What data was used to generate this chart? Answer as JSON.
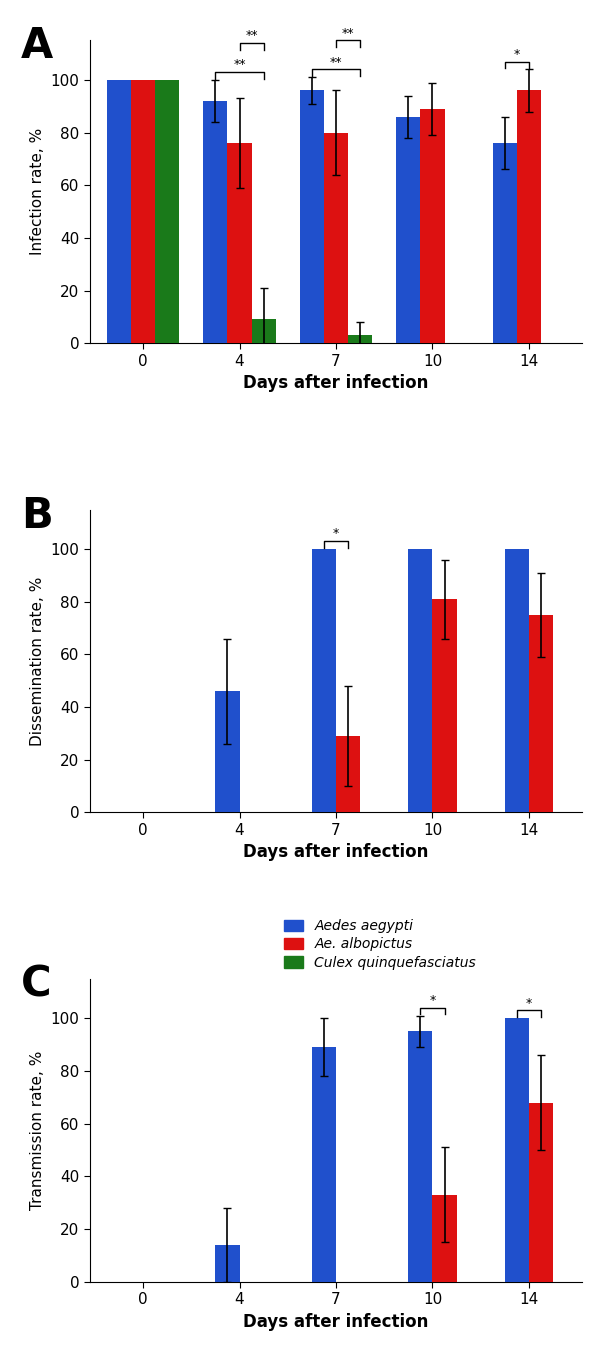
{
  "panel_A": {
    "title": "A",
    "ylabel": "Infection rate, %",
    "xlabel": "Days after infection",
    "days": [
      0,
      4,
      7,
      10,
      14
    ],
    "blue_values": [
      100,
      92,
      96,
      86,
      76
    ],
    "blue_errors": [
      0,
      8,
      5,
      8,
      10
    ],
    "red_values": [
      100,
      76,
      80,
      89,
      96
    ],
    "red_errors": [
      0,
      17,
      16,
      10,
      8
    ],
    "green_values": [
      100,
      9,
      3,
      null,
      null
    ],
    "green_errors": [
      0,
      12,
      5,
      null,
      null
    ],
    "sig_brackets": [
      {
        "day": 4,
        "pairs": [
          [
            "blue",
            "green"
          ],
          [
            "red",
            "green"
          ]
        ],
        "labels": [
          "**",
          "**"
        ]
      },
      {
        "day": 7,
        "pairs": [
          [
            "blue",
            "green"
          ],
          [
            "red",
            "green"
          ]
        ],
        "labels": [
          "**",
          "**"
        ]
      },
      {
        "day": 14,
        "pairs": [
          [
            "blue",
            "red"
          ]
        ],
        "labels": [
          "*"
        ]
      }
    ]
  },
  "panel_B": {
    "title": "B",
    "ylabel": "Dissemination rate, %",
    "xlabel": "Days after infection",
    "days": [
      0,
      4,
      7,
      10,
      14
    ],
    "blue_values": [
      null,
      46,
      100,
      100,
      100
    ],
    "blue_errors": [
      null,
      20,
      0,
      0,
      0
    ],
    "red_values": [
      null,
      null,
      29,
      81,
      75
    ],
    "red_errors": [
      null,
      null,
      19,
      15,
      16
    ],
    "sig_brackets": [
      {
        "day": 7,
        "pairs": [
          [
            "blue",
            "red"
          ]
        ],
        "labels": [
          "*"
        ]
      }
    ]
  },
  "panel_C": {
    "title": "C",
    "ylabel": "Transmission rate, %",
    "xlabel": "Days after infection",
    "days": [
      0,
      4,
      7,
      10,
      14
    ],
    "blue_values": [
      null,
      14,
      89,
      95,
      100
    ],
    "blue_errors": [
      null,
      14,
      11,
      6,
      0
    ],
    "red_values": [
      null,
      null,
      null,
      33,
      68
    ],
    "red_errors": [
      null,
      null,
      null,
      18,
      18
    ],
    "sig_brackets": [
      {
        "day": 10,
        "pairs": [
          [
            "blue",
            "red"
          ]
        ],
        "labels": [
          "*"
        ]
      },
      {
        "day": 14,
        "pairs": [
          [
            "blue",
            "red"
          ]
        ],
        "labels": [
          "*"
        ]
      }
    ]
  },
  "colors": {
    "blue": "#2050cc",
    "red": "#dd1111",
    "green": "#1a7a1a"
  },
  "legend_labels": [
    "Aedes aegypti",
    "Ae. albopictus",
    "Culex quinquefasciatus"
  ],
  "bar_width": 0.25,
  "ylim": [
    0,
    115
  ],
  "yticks": [
    0,
    20,
    40,
    60,
    80,
    100
  ]
}
